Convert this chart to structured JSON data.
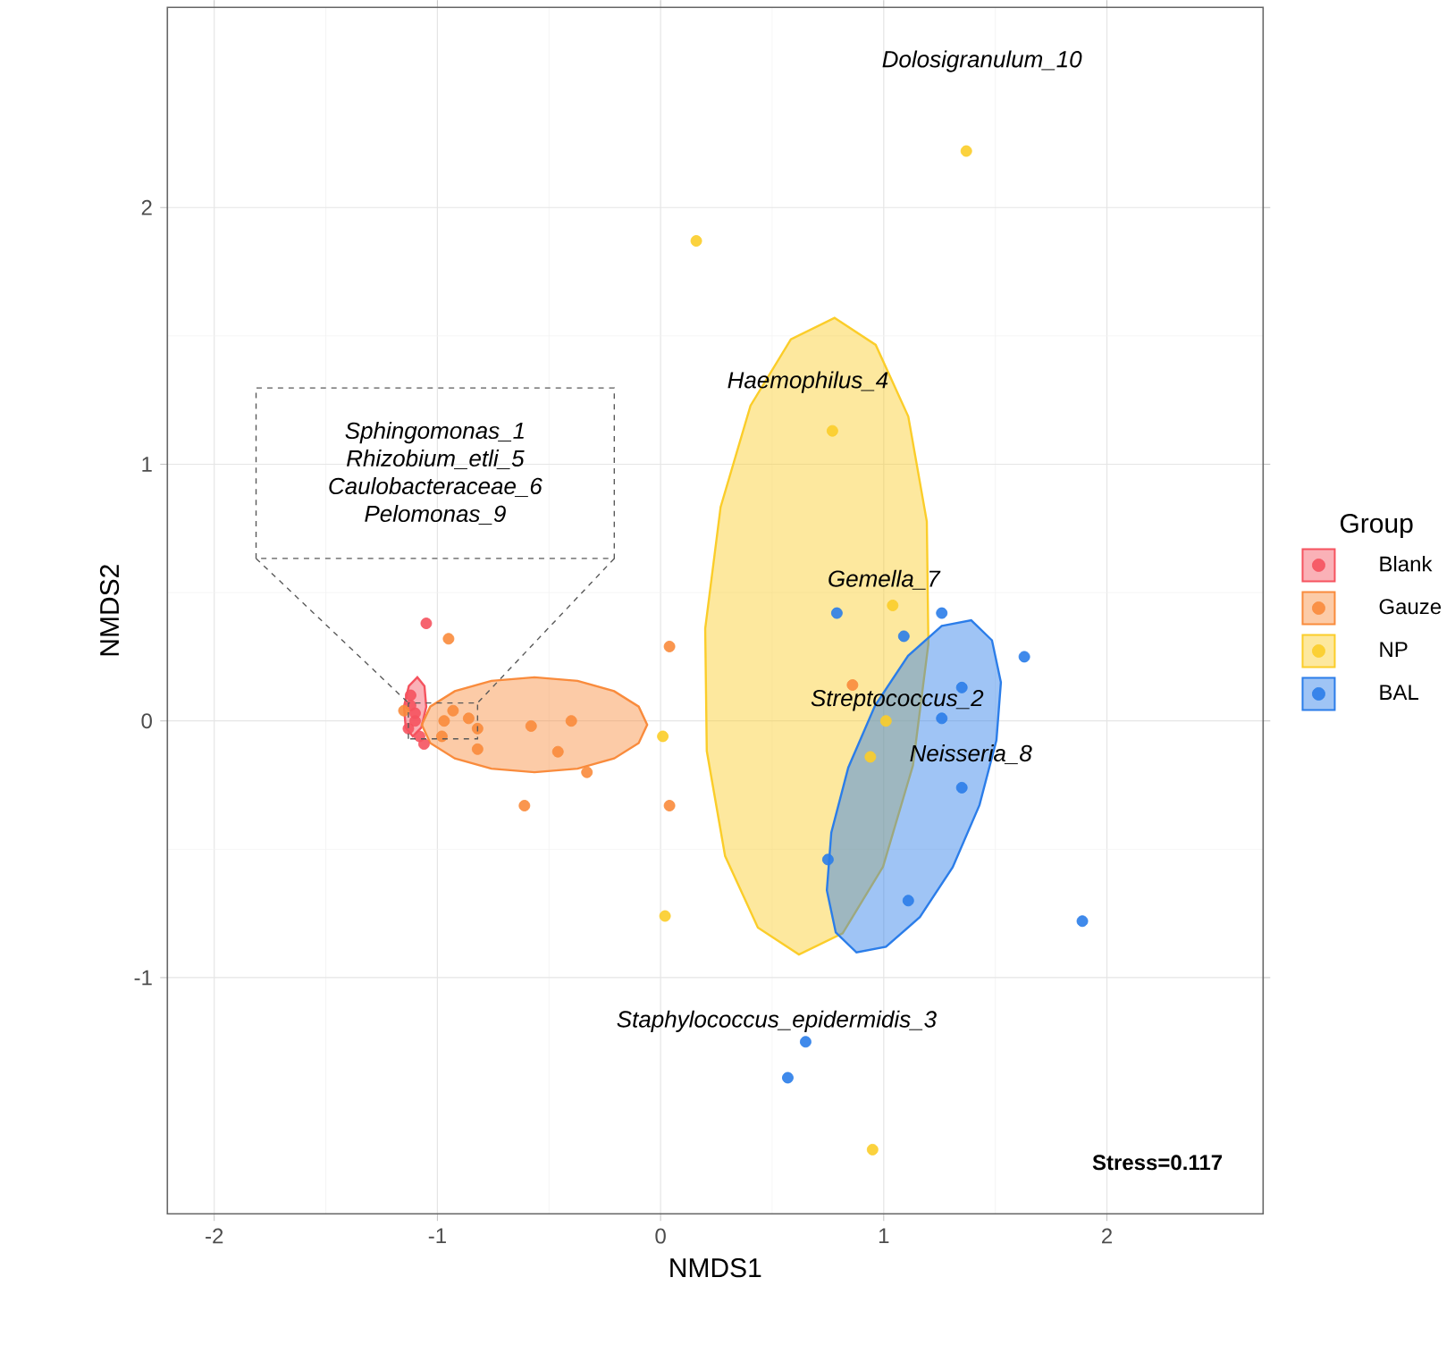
{
  "chart_data": {
    "type": "scatter",
    "xlabel": "NMDS1",
    "ylabel": "NMDS2",
    "legend_title": "Group",
    "legend": "right",
    "grid": true,
    "xlim": [
      -2.21,
      2.7
    ],
    "ylim": [
      -1.92,
      2.78
    ],
    "xticks": [
      -2,
      -1,
      0,
      1,
      2
    ],
    "yticks": [
      -1,
      0,
      1,
      2
    ],
    "series": [
      {
        "type": "area",
        "color": "#f5535f",
        "x": [
          -1.09,
          -1.058,
          -1.05,
          -1.072,
          -1.11,
          -1.142,
          -1.15,
          -1.128
        ],
        "values": [
          0.17,
          0.136,
          0.055,
          -0.026,
          -0.06,
          -0.026,
          0.055,
          0.136
        ]
      },
      {
        "type": "area",
        "color": "#f98b3c",
        "x": [
          -0.06,
          -0.098,
          -0.208,
          -0.372,
          -0.565,
          -0.758,
          -0.922,
          -1.032,
          -1.07,
          -1.032,
          -0.922,
          -0.758,
          -0.565,
          -0.372,
          -0.208,
          -0.098
        ],
        "values": [
          -0.015,
          0.056,
          0.116,
          0.156,
          0.17,
          0.156,
          0.116,
          0.056,
          -0.015,
          -0.086,
          -0.146,
          -0.186,
          -0.2,
          -0.186,
          -0.146,
          -0.086
        ]
      },
      {
        "type": "area",
        "color": "#fbcd29",
        "x": [
          0.78,
          0.964,
          1.11,
          1.193,
          1.2,
          1.131,
          0.997,
          0.816,
          0.62,
          0.436,
          0.289,
          0.207,
          0.2,
          0.269,
          0.403,
          0.584
        ],
        "values": [
          1.57,
          1.465,
          1.186,
          0.777,
          0.3,
          -0.173,
          -0.568,
          -0.827,
          -0.91,
          -0.805,
          -0.526,
          -0.117,
          0.36,
          0.833,
          1.228,
          1.487
        ]
      },
      {
        "type": "area",
        "color": "#2b7de9",
        "x": [
          1.26,
          1.392,
          1.485,
          1.525,
          1.505,
          1.429,
          1.309,
          1.162,
          1.01,
          0.878,
          0.785,
          0.745,
          0.765,
          0.841,
          0.961,
          1.109
        ],
        "values": [
          0.37,
          0.392,
          0.314,
          0.15,
          -0.075,
          -0.328,
          -0.57,
          -0.764,
          -0.88,
          -0.902,
          -0.824,
          -0.66,
          -0.435,
          -0.182,
          0.06,
          0.254
        ]
      },
      {
        "name": "Blank",
        "marker": "circle",
        "color": "#f5535f",
        "x": [
          -1.05,
          -1.12,
          -1.1,
          -1.13,
          -1.08,
          -1.06,
          -1.1,
          -1.12
        ],
        "values": [
          0.38,
          0.06,
          0.0,
          -0.03,
          -0.06,
          -0.09,
          0.03,
          0.1
        ]
      },
      {
        "name": "Gauze",
        "marker": "circle",
        "color": "#f98b3c",
        "x": [
          -0.95,
          0.04,
          -0.93,
          -0.97,
          -0.86,
          -0.82,
          -0.98,
          -0.58,
          -0.4,
          -0.82,
          -0.46,
          -0.33,
          -0.61,
          0.04,
          0.86,
          -1.15
        ],
        "values": [
          0.32,
          0.29,
          0.04,
          0.0,
          0.01,
          -0.03,
          -0.06,
          -0.02,
          0.0,
          -0.11,
          -0.12,
          -0.2,
          -0.33,
          -0.33,
          0.14,
          0.04
        ]
      },
      {
        "name": "NP",
        "marker": "circle",
        "color": "#fbcd29",
        "x": [
          1.37,
          0.16,
          0.77,
          1.04,
          1.01,
          0.94,
          0.01,
          0.02,
          0.95
        ],
        "values": [
          2.22,
          1.87,
          1.13,
          0.45,
          0.0,
          -0.14,
          -0.06,
          -0.76,
          -1.67
        ]
      },
      {
        "name": "BAL",
        "marker": "circle",
        "color": "#2b7de9",
        "x": [
          0.79,
          1.26,
          1.09,
          1.63,
          1.35,
          1.26,
          1.35,
          0.75,
          1.11,
          1.89,
          0.65,
          0.57
        ],
        "values": [
          0.42,
          0.42,
          0.33,
          0.25,
          0.13,
          0.01,
          -0.26,
          -0.54,
          -0.7,
          -0.78,
          -1.25,
          -1.39
        ]
      }
    ],
    "annotations": [
      "Dolosigranulum_10",
      "Haemophilus_4",
      "Gemella_7",
      "Streptococcus_2",
      "Neisseria_8",
      "Staphylococcus_epidermidis_3",
      "Sphingomonas_1",
      "Rhizobium_etli_5",
      "Caulobacteraceae_6",
      "Pelomonas_9",
      "Stress=0.117"
    ]
  }
}
